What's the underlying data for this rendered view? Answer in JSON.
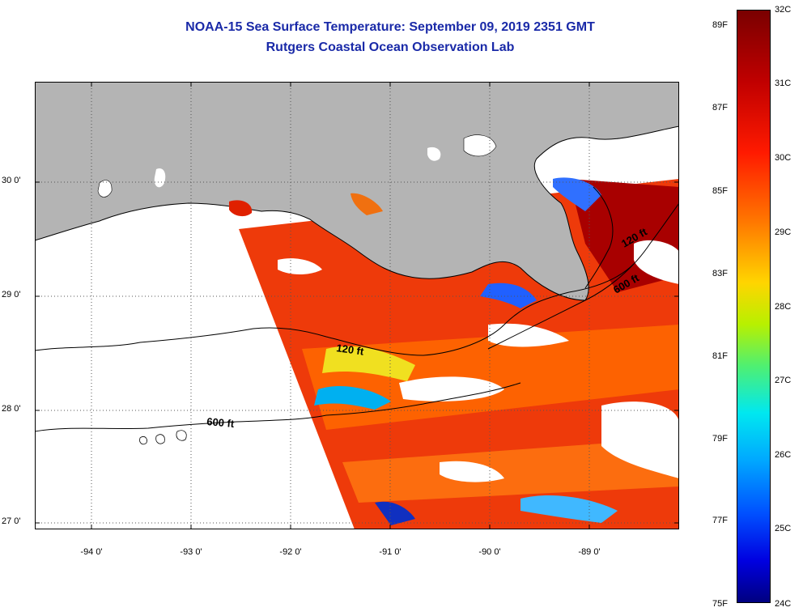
{
  "title_line1": "NOAA-15 Sea Surface Temperature:  September 09, 2019 2351 GMT",
  "title_line2": "Rutgers Coastal Ocean Observation Lab",
  "lat_labels": [
    "30 0'",
    "29 0'",
    "28 0'",
    "27 0'"
  ],
  "lon_labels": [
    "-94 0'",
    "-93 0'",
    "-92 0'",
    "-91 0'",
    "-90 0'",
    "-89 0'"
  ],
  "depth_labels": [
    "600 ft",
    "120 ft",
    "600 ft",
    "120 ft"
  ],
  "colorbar": {
    "fahrenheit": [
      "89F",
      "87F",
      "85F",
      "83F",
      "81F",
      "79F",
      "77F",
      "75F"
    ],
    "celsius": [
      "32C",
      "31C",
      "30C",
      "29C",
      "28C",
      "27C",
      "26C",
      "25C",
      "24C"
    ]
  },
  "colors": {
    "land": "#b4b4b4",
    "title": "#1a2aa8",
    "no_data": "#ffffff"
  }
}
